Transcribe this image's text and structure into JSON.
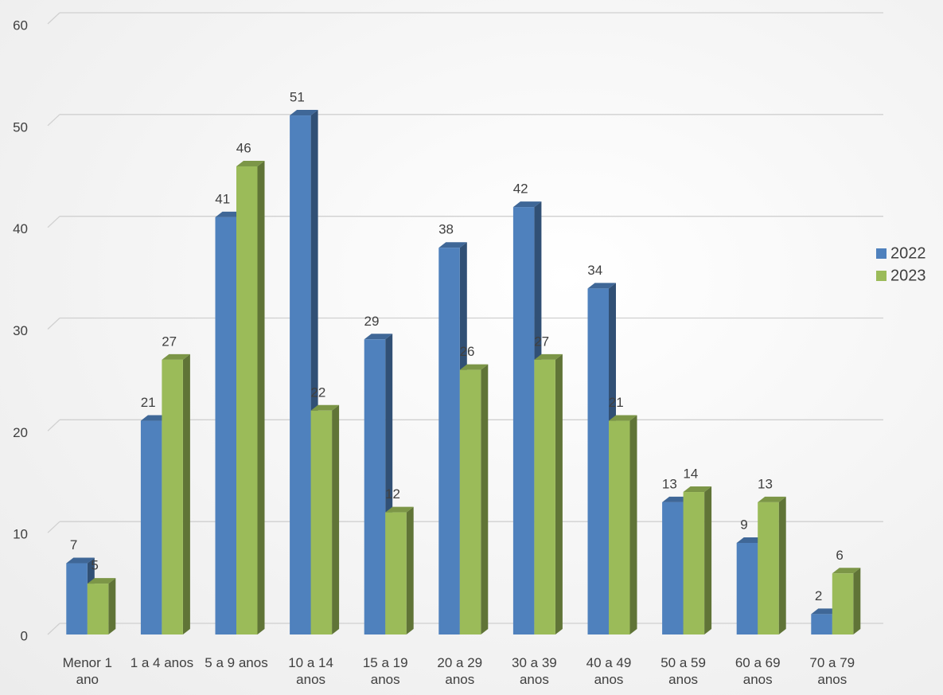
{
  "chart_data": {
    "type": "bar",
    "categories": [
      "Menor 1 ano",
      "1 a 4 anos",
      "5 a 9 anos",
      "10 a 14 anos",
      "15 a 19 anos",
      "20 a 29 anos",
      "30 a 39 anos",
      "40 a 49 anos",
      "50 a 59 anos",
      "60 a 69 anos",
      "70 a 79 anos"
    ],
    "series": [
      {
        "name": "2022",
        "color": "#4f81bd",
        "values": [
          7,
          21,
          41,
          51,
          29,
          38,
          42,
          34,
          13,
          9,
          2
        ]
      },
      {
        "name": "2023",
        "color": "#9bbb59",
        "values": [
          5,
          27,
          46,
          22,
          12,
          26,
          27,
          21,
          14,
          13,
          6
        ]
      }
    ],
    "ylim": [
      0,
      60
    ],
    "yticks": [
      0,
      10,
      20,
      30,
      40,
      50,
      60
    ],
    "grid": true,
    "legend": "right"
  }
}
